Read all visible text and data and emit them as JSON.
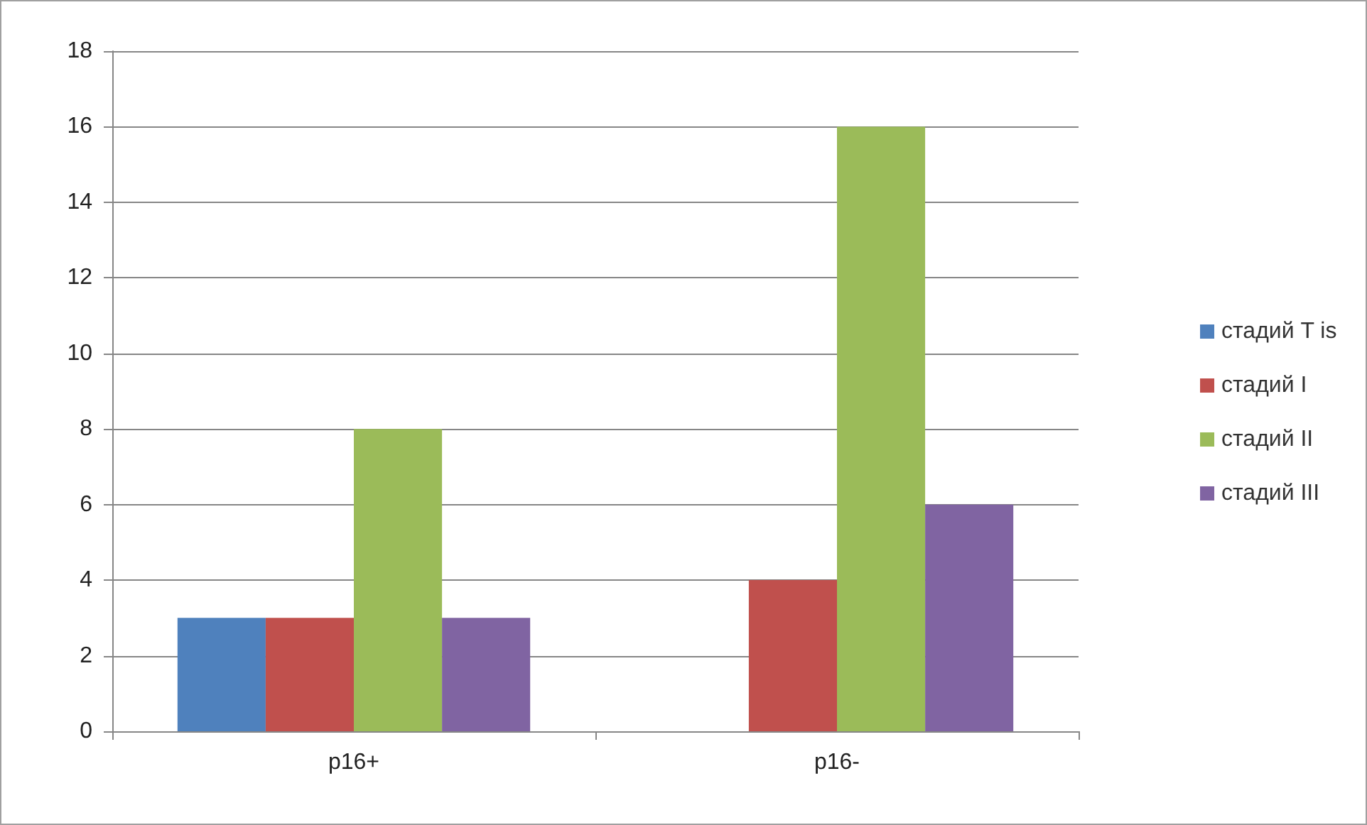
{
  "chart_data": {
    "type": "bar",
    "categories": [
      "p16+",
      "p16-"
    ],
    "series": [
      {
        "name": "стадий T is",
        "color": "#4f81bd",
        "values": [
          3,
          0
        ]
      },
      {
        "name": "стадий I",
        "color": "#c0504d",
        "values": [
          3,
          4
        ]
      },
      {
        "name": "стадий II",
        "color": "#9bbb59",
        "values": [
          8,
          16
        ]
      },
      {
        "name": "стадий III",
        "color": "#8064a2",
        "values": [
          3,
          6
        ]
      }
    ],
    "ylim": [
      0,
      18
    ],
    "yticks": [
      0,
      2,
      4,
      6,
      8,
      10,
      12,
      14,
      16,
      18
    ],
    "grid": "y",
    "legend": "right"
  }
}
